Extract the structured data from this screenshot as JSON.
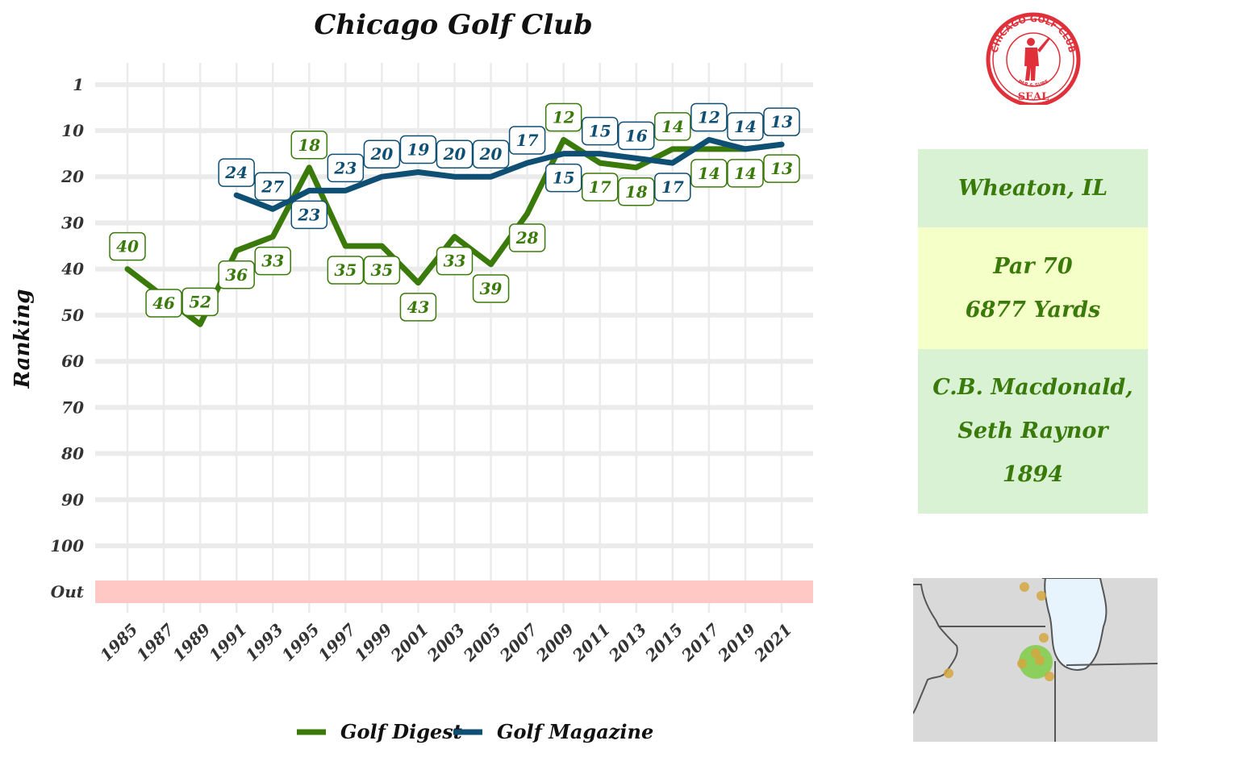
{
  "chart_data": {
    "type": "line",
    "title": "Chicago Golf Club",
    "ylabel": "Ranking",
    "xlabel": "",
    "y_ticks": [
      "1",
      "10",
      "20",
      "30",
      "40",
      "50",
      "60",
      "70",
      "80",
      "90",
      "100",
      "Out"
    ],
    "y_tick_values": [
      1,
      10,
      20,
      30,
      40,
      50,
      60,
      70,
      80,
      90,
      100
    ],
    "y_out_label": "Out",
    "y_reversed": true,
    "x_ticks": [
      "1985",
      "1987",
      "1989",
      "1991",
      "1993",
      "1995",
      "1997",
      "1999",
      "2001",
      "2003",
      "2005",
      "2007",
      "2009",
      "2011",
      "2013",
      "2015",
      "2017",
      "2019",
      "2021"
    ],
    "xlim": [
      1985,
      2021
    ],
    "grid": true,
    "legend_position": "bottom",
    "series": [
      {
        "name": "Golf Digest",
        "color": "#3a7a0a",
        "points": [
          {
            "x": 1985,
            "y": 40
          },
          {
            "x": 1987,
            "y": 46
          },
          {
            "x": 1989,
            "y": 52
          },
          {
            "x": 1991,
            "y": 36
          },
          {
            "x": 1993,
            "y": 33
          },
          {
            "x": 1995,
            "y": 18
          },
          {
            "x": 1997,
            "y": 35
          },
          {
            "x": 1999,
            "y": 35
          },
          {
            "x": 2001,
            "y": 43
          },
          {
            "x": 2003,
            "y": 33
          },
          {
            "x": 2005,
            "y": 39
          },
          {
            "x": 2007,
            "y": 28
          },
          {
            "x": 2009,
            "y": 12
          },
          {
            "x": 2011,
            "y": 17
          },
          {
            "x": 2013,
            "y": 18
          },
          {
            "x": 2015,
            "y": 14
          },
          {
            "x": 2017,
            "y": 14
          },
          {
            "x": 2019,
            "y": 14
          },
          {
            "x": 2021,
            "y": 13
          }
        ]
      },
      {
        "name": "Golf Magazine",
        "color": "#0f4f73",
        "points": [
          {
            "x": 1991,
            "y": 24
          },
          {
            "x": 1993,
            "y": 27
          },
          {
            "x": 1995,
            "y": 23
          },
          {
            "x": 1997,
            "y": 23
          },
          {
            "x": 1999,
            "y": 20
          },
          {
            "x": 2001,
            "y": 19
          },
          {
            "x": 2003,
            "y": 20
          },
          {
            "x": 2005,
            "y": 20
          },
          {
            "x": 2007,
            "y": 17
          },
          {
            "x": 2009,
            "y": 15
          },
          {
            "x": 2011,
            "y": 15
          },
          {
            "x": 2013,
            "y": 16
          },
          {
            "x": 2015,
            "y": 17
          },
          {
            "x": 2017,
            "y": 12
          },
          {
            "x": 2019,
            "y": 14
          },
          {
            "x": 2021,
            "y": 13
          }
        ]
      }
    ]
  },
  "info": {
    "location": "Wheaton, IL",
    "par": "Par 70",
    "yards": "6877 Yards",
    "architects_line1": "C.B. Macdonald,",
    "architects_line2": "Seth Raynor",
    "year": "1894",
    "colors": {
      "location_bg": "#d8f2d3",
      "course_bg": "#f5ffc8",
      "architect_bg": "#d8f2d3",
      "text": "#3a7a0a"
    }
  },
  "seal": {
    "top_text": "CHICAGO GOLF CLUB",
    "bottom_text": "SEAL",
    "motto": "PAR & SURE",
    "color": "#e0303a"
  }
}
